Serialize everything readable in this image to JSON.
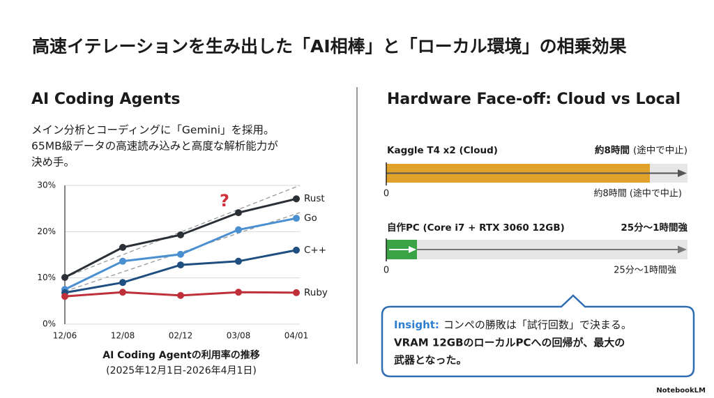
{
  "title": "高速イテレーションを生み出した「AI相棒」と「ローカル環境」の相乗効果",
  "left": {
    "heading": "AI Coding Agents",
    "lines": [
      "メイン分析とコーディングに「Gemini」を採用。",
      "65MB級データの高速読み込みと高度な解析能力が",
      "決め手。"
    ]
  },
  "chart_data": {
    "type": "line",
    "title": "AI Coding Agentの利用率の推移",
    "subtitle": "(2025年12月1日-2026年4月1日)",
    "annotation": "?",
    "categories": [
      "12/06",
      "12/08",
      "02/12",
      "03/08",
      "04/01"
    ],
    "series": [
      {
        "name": "Rust",
        "color": "#2b2f36",
        "values": [
          10.1,
          16.6,
          19.3,
          24.1,
          27.1
        ]
      },
      {
        "name": "Go",
        "color": "#4a8fd0",
        "values": [
          7.5,
          13.6,
          15.1,
          20.4,
          22.9
        ]
      },
      {
        "name": "C++",
        "color": "#1f4e80",
        "values": [
          6.8,
          9,
          12.8,
          13.6,
          16
        ]
      },
      {
        "name": "Ruby",
        "color": "#c0303a",
        "values": [
          6,
          6.9,
          6.2,
          6.9,
          6.8
        ]
      }
    ],
    "ylim": [
      0,
      30
    ],
    "yticks": [
      {
        "value": 0,
        "label": "0%"
      },
      {
        "value": 10,
        "label": "10%"
      },
      {
        "value": 20,
        "label": "20%"
      },
      {
        "value": 30,
        "label": "30%"
      }
    ],
    "grid": true
  },
  "hardware": {
    "heading": "Hardware Face-off: Cloud vs Local",
    "rows": [
      {
        "name": "Kaggle T4 x2 (Cloud)",
        "duration": "約8時間",
        "note": "(途中で中止)",
        "start": "0",
        "below": "約8時間 (途中で中止)"
      },
      {
        "name": "自作PC (Core i7 + RTX 3060 12GB)",
        "duration": "25分〜1時間強",
        "start": "0",
        "below": "25分〜1時間強"
      }
    ]
  },
  "insight": {
    "label": "Insight:",
    "lines": [
      "コンペの勝敗は「試行回数」で決まる。",
      "VRAM 12GBのローカルPCへの回帰が、最大の",
      "武器となった。"
    ]
  },
  "footer": "NotebookLM"
}
